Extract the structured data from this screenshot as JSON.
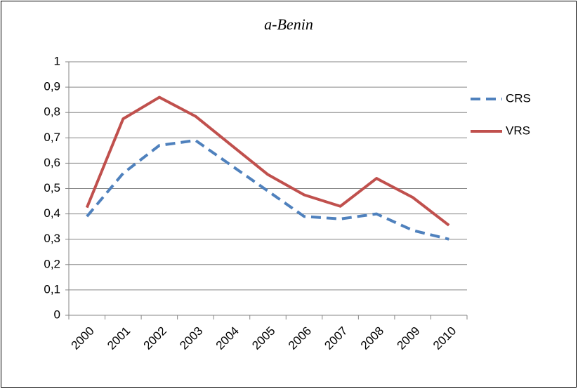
{
  "chart_data": {
    "type": "line",
    "title": "a-Benin",
    "categories": [
      "2000",
      "2001",
      "2002",
      "2003",
      "2004",
      "2005",
      "2006",
      "2007",
      "2008",
      "2009",
      "2010"
    ],
    "series": [
      {
        "name": "CRS",
        "color": "#4f81bd",
        "dashed": true,
        "values": [
          0.39,
          0.56,
          0.67,
          0.69,
          0.59,
          0.49,
          0.39,
          0.38,
          0.4,
          0.335,
          0.3
        ]
      },
      {
        "name": "VRS",
        "color": "#c0504d",
        "dashed": false,
        "values": [
          0.425,
          0.775,
          0.86,
          0.785,
          0.67,
          0.555,
          0.475,
          0.43,
          0.54,
          0.465,
          0.355
        ]
      }
    ],
    "ylim": [
      0,
      1
    ],
    "yticks": [
      0,
      {
        "value": 0.1,
        "label": "0,1"
      },
      {
        "value": 0.2,
        "label": "0,2"
      },
      {
        "value": 0.3,
        "label": "0,3"
      },
      {
        "value": 0.4,
        "label": "0,4"
      },
      {
        "value": 0.5,
        "label": "0,5"
      },
      {
        "value": 0.6,
        "label": "0,6"
      },
      {
        "value": 0.7,
        "label": "0,7"
      },
      {
        "value": 0.8,
        "label": "0,8"
      },
      {
        "value": 0.9,
        "label": "0,9"
      },
      1
    ],
    "grid": true,
    "legend": "right"
  }
}
